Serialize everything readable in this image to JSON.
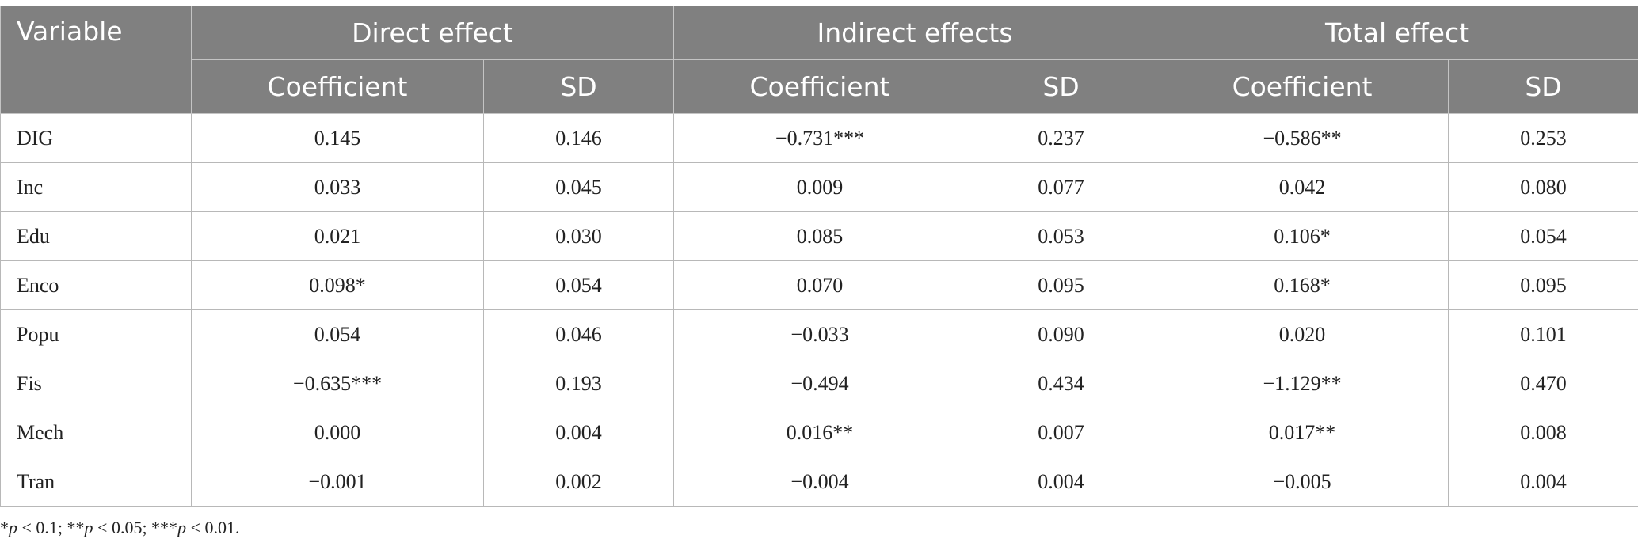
{
  "table": {
    "header": {
      "variable": "Variable",
      "direct": "Direct effect",
      "indirect": "Indirect effects",
      "total": "Total effect",
      "coef": "Coefficient",
      "sd": "SD"
    },
    "rows": [
      {
        "var": "DIG",
        "d_coef": "0.145",
        "d_sd": "0.146",
        "i_coef": "−0.731***",
        "i_sd": "0.237",
        "t_coef": "−0.586**",
        "t_sd": "0.253"
      },
      {
        "var": "Inc",
        "d_coef": "0.033",
        "d_sd": "0.045",
        "i_coef": "0.009",
        "i_sd": "0.077",
        "t_coef": "0.042",
        "t_sd": "0.080"
      },
      {
        "var": "Edu",
        "d_coef": "0.021",
        "d_sd": "0.030",
        "i_coef": "0.085",
        "i_sd": "0.053",
        "t_coef": "0.106*",
        "t_sd": "0.054"
      },
      {
        "var": "Enco",
        "d_coef": "0.098*",
        "d_sd": "0.054",
        "i_coef": "0.070",
        "i_sd": "0.095",
        "t_coef": "0.168*",
        "t_sd": "0.095"
      },
      {
        "var": "Popu",
        "d_coef": "0.054",
        "d_sd": "0.046",
        "i_coef": "−0.033",
        "i_sd": "0.090",
        "t_coef": "0.020",
        "t_sd": "0.101"
      },
      {
        "var": "Fis",
        "d_coef": "−0.635***",
        "d_sd": "0.193",
        "i_coef": "−0.494",
        "i_sd": "0.434",
        "t_coef": "−1.129**",
        "t_sd": "0.470"
      },
      {
        "var": "Mech",
        "d_coef": "0.000",
        "d_sd": "0.004",
        "i_coef": "0.016**",
        "i_sd": "0.007",
        "t_coef": "0.017**",
        "t_sd": "0.008"
      },
      {
        "var": "Tran",
        "d_coef": "−0.001",
        "d_sd": "0.002",
        "i_coef": "−0.004",
        "i_sd": "0.004",
        "t_coef": "−0.005",
        "t_sd": "0.004"
      }
    ]
  },
  "footnote": {
    "parts": [
      {
        "text": "*",
        "italic": false
      },
      {
        "text": "p",
        "italic": true
      },
      {
        "text": " < 0.1; **",
        "italic": false
      },
      {
        "text": "p",
        "italic": true
      },
      {
        "text": " < 0.05; ***",
        "italic": false
      },
      {
        "text": "p",
        "italic": true
      },
      {
        "text": " < 0.01.",
        "italic": false
      }
    ]
  }
}
